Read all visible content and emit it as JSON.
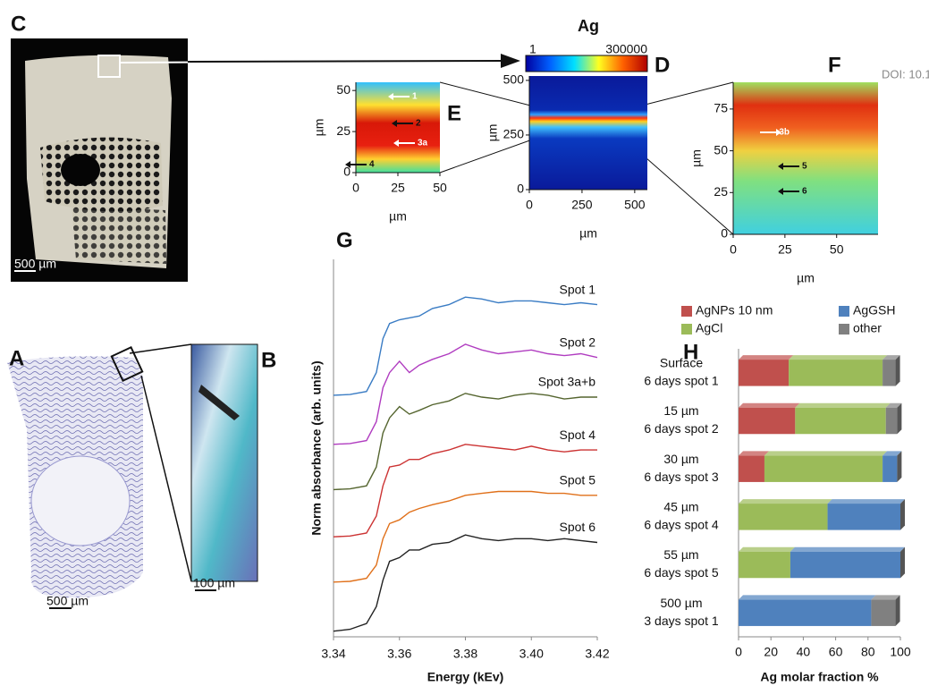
{
  "labels": {
    "panel_c": "C",
    "panel_a": "A",
    "panel_b": "B",
    "panel_d": "D",
    "panel_e": "E",
    "panel_f": "F",
    "panel_g": "G",
    "panel_h": "H",
    "scale_c": "500 µm",
    "scale_a": "500 µm",
    "scale_b": "100 µm",
    "doi": "DOI: 10.1"
  },
  "chart_data": [
    {
      "type": "heatmap",
      "title": "Ag",
      "clim": [
        1,
        300000
      ],
      "xlim": [
        0,
        560
      ],
      "xticks": [
        0,
        250,
        500
      ],
      "ylim": [
        0,
        520
      ],
      "yticks": [
        0,
        250,
        500
      ],
      "xlabel": "µm",
      "ylabel": "µm"
    },
    {
      "type": "heatmap",
      "xlim": [
        0,
        50
      ],
      "xticks": [
        0,
        25,
        50
      ],
      "ylim": [
        0,
        55
      ],
      "yticks": [
        0,
        25,
        50
      ],
      "xlabel": "µm",
      "ylabel": "µm",
      "annotations": [
        "1",
        "2",
        "3a",
        "4"
      ]
    },
    {
      "type": "heatmap",
      "xlim": [
        0,
        70
      ],
      "xticks": [
        0,
        25,
        50
      ],
      "ylim": [
        0,
        91
      ],
      "yticks": [
        0,
        25,
        50,
        75
      ],
      "xlabel": "µm",
      "ylabel": "µm",
      "annotations": [
        "3b",
        "5",
        "6"
      ]
    },
    {
      "type": "line",
      "xlabel": "Energy (kEv)",
      "ylabel": "Norm absorbance (arb. units)",
      "x": [
        3.34,
        3.345,
        3.35,
        3.353,
        3.355,
        3.357,
        3.36,
        3.363,
        3.366,
        3.37,
        3.375,
        3.38,
        3.385,
        3.39,
        3.395,
        3.4,
        3.405,
        3.41,
        3.415,
        3.42
      ],
      "xlim": [
        3.34,
        3.42
      ],
      "xticks": [
        3.34,
        3.36,
        3.38,
        {
          "value": 3.4,
          "label": "3.40"
        },
        3.42
      ],
      "ylim": [
        0,
        10
      ],
      "series": [
        {
          "name": "Spot 1",
          "color": "#3a7cc4",
          "values": [
            6.4,
            6.42,
            6.5,
            7.0,
            7.9,
            8.3,
            8.4,
            8.45,
            8.5,
            8.7,
            8.8,
            9.0,
            8.95,
            8.85,
            8.9,
            8.9,
            8.85,
            8.8,
            8.85,
            8.8
          ]
        },
        {
          "name": "Spot 2",
          "color": "#b03cc0",
          "values": [
            5.1,
            5.12,
            5.2,
            5.7,
            6.6,
            7.0,
            7.3,
            7.0,
            7.2,
            7.35,
            7.5,
            7.75,
            7.6,
            7.5,
            7.55,
            7.6,
            7.5,
            7.45,
            7.5,
            7.4
          ]
        },
        {
          "name": "Spot 3a+b",
          "color": "#55652f",
          "values": [
            3.9,
            3.92,
            4.0,
            4.5,
            5.4,
            5.8,
            6.1,
            5.9,
            6.0,
            6.15,
            6.25,
            6.45,
            6.35,
            6.3,
            6.4,
            6.45,
            6.4,
            6.3,
            6.35,
            6.35
          ]
        },
        {
          "name": "Spot 4",
          "color": "#cc3333",
          "values": [
            2.65,
            2.67,
            2.75,
            3.2,
            4.0,
            4.5,
            4.55,
            4.7,
            4.7,
            4.85,
            4.95,
            5.1,
            5.05,
            5.0,
            4.95,
            5.05,
            4.95,
            4.9,
            4.95,
            4.95
          ]
        },
        {
          "name": "Spot 5",
          "color": "#e0701a",
          "values": [
            1.45,
            1.47,
            1.55,
            1.9,
            2.6,
            3.0,
            3.1,
            3.3,
            3.4,
            3.5,
            3.6,
            3.75,
            3.8,
            3.85,
            3.85,
            3.85,
            3.8,
            3.8,
            3.75,
            3.75
          ]
        },
        {
          "name": "Spot 6",
          "color": "#222222",
          "values": [
            0.15,
            0.2,
            0.35,
            0.8,
            1.5,
            2.0,
            2.1,
            2.3,
            2.3,
            2.45,
            2.5,
            2.7,
            2.6,
            2.55,
            2.6,
            2.6,
            2.55,
            2.6,
            2.55,
            2.5
          ]
        }
      ]
    },
    {
      "type": "stacked_barh",
      "xlabel": "Ag molar fraction %",
      "xlim": [
        0,
        100
      ],
      "xticks": [
        0,
        20,
        40,
        60,
        80,
        100
      ],
      "legend": "top",
      "categories": [
        [
          "Surface",
          "6 days spot 1"
        ],
        [
          "15 µm",
          "6 days spot 2"
        ],
        [
          "30 µm",
          "6 days spot 3"
        ],
        [
          "45 µm",
          "6 days spot 4"
        ],
        [
          "55 µm",
          "6 days spot 5"
        ],
        [
          "500 µm",
          "3 days spot 1"
        ]
      ],
      "series": [
        {
          "name": "AgNPs 10 nm",
          "color": "#c0504d",
          "values": [
            31,
            35,
            16,
            0,
            0,
            0
          ]
        },
        {
          "name": "AgCl",
          "color": "#9bbb59",
          "values": [
            58,
            56,
            73,
            55,
            32,
            0
          ]
        },
        {
          "name": "AgGSH",
          "color": "#4f81bd",
          "values": [
            0,
            0,
            9,
            45,
            68,
            82
          ]
        },
        {
          "name": "other",
          "color": "#808080",
          "values": [
            8,
            7,
            0,
            0,
            0,
            15
          ]
        }
      ]
    }
  ]
}
